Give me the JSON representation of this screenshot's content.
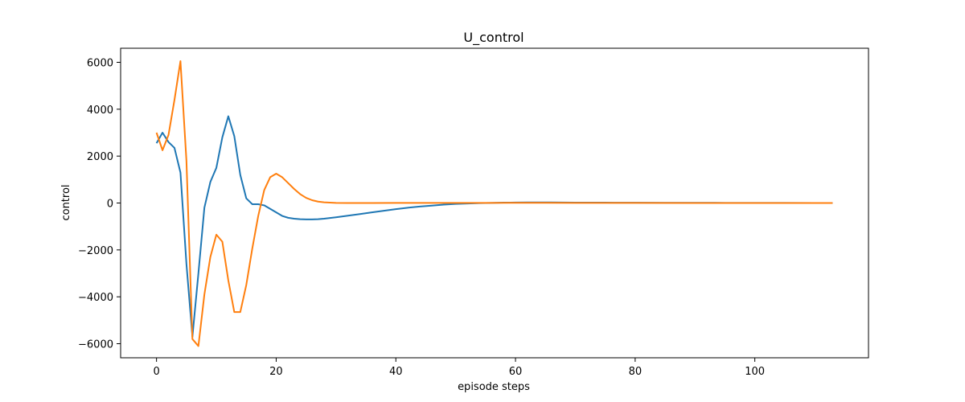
{
  "chart_data": {
    "type": "line",
    "title": "U_control",
    "xlabel": "episode steps",
    "ylabel": "control",
    "xlim": [
      -6,
      119
    ],
    "ylim": [
      -6600,
      6600
    ],
    "x_ticks": [
      0,
      20,
      40,
      60,
      80,
      100
    ],
    "y_ticks": [
      -6000,
      -4000,
      -2000,
      0,
      2000,
      4000,
      6000
    ],
    "x_tick_labels": [
      "0",
      "20",
      "40",
      "60",
      "80",
      "100"
    ],
    "y_tick_labels": [
      "−6000",
      "−4000",
      "−2000",
      "0",
      "2000",
      "4000",
      "6000"
    ],
    "grid": false,
    "legend": "none",
    "series": [
      {
        "color": "#1f77b4",
        "points": [
          [
            0,
            2550
          ],
          [
            1,
            3000
          ],
          [
            2,
            2600
          ],
          [
            3,
            2350
          ],
          [
            4,
            1300
          ],
          [
            5,
            -2600
          ],
          [
            6,
            -5700
          ],
          [
            7,
            -3000
          ],
          [
            8,
            -200
          ],
          [
            9,
            900
          ],
          [
            10,
            1500
          ],
          [
            11,
            2800
          ],
          [
            12,
            3700
          ],
          [
            13,
            2850
          ],
          [
            14,
            1200
          ],
          [
            15,
            200
          ],
          [
            16,
            -50
          ],
          [
            17,
            -50
          ],
          [
            18,
            -100
          ],
          [
            19,
            -250
          ],
          [
            20,
            -400
          ],
          [
            21,
            -550
          ],
          [
            22,
            -630
          ],
          [
            23,
            -670
          ],
          [
            24,
            -690
          ],
          [
            25,
            -700
          ],
          [
            26,
            -700
          ],
          [
            27,
            -690
          ],
          [
            28,
            -670
          ],
          [
            29,
            -640
          ],
          [
            30,
            -610
          ],
          [
            32,
            -540
          ],
          [
            34,
            -470
          ],
          [
            36,
            -400
          ],
          [
            38,
            -330
          ],
          [
            40,
            -260
          ],
          [
            42,
            -200
          ],
          [
            44,
            -150
          ],
          [
            46,
            -110
          ],
          [
            48,
            -70
          ],
          [
            50,
            -40
          ],
          [
            52,
            -20
          ],
          [
            54,
            -5
          ],
          [
            56,
            5
          ],
          [
            58,
            15
          ],
          [
            60,
            20
          ],
          [
            62,
            25
          ],
          [
            64,
            25
          ],
          [
            66,
            25
          ],
          [
            68,
            20
          ],
          [
            70,
            18
          ],
          [
            75,
            15
          ],
          [
            80,
            12
          ],
          [
            85,
            10
          ],
          [
            90,
            8
          ],
          [
            95,
            6
          ],
          [
            100,
            5
          ],
          [
            105,
            3
          ],
          [
            110,
            2
          ],
          [
            113,
            1
          ]
        ]
      },
      {
        "color": "#ff7f0e",
        "points": [
          [
            0,
            3000
          ],
          [
            1,
            2250
          ],
          [
            2,
            2900
          ],
          [
            3,
            4400
          ],
          [
            4,
            6050
          ],
          [
            5,
            1800
          ],
          [
            6,
            -5800
          ],
          [
            7,
            -6100
          ],
          [
            8,
            -3900
          ],
          [
            9,
            -2300
          ],
          [
            10,
            -1350
          ],
          [
            11,
            -1650
          ],
          [
            12,
            -3300
          ],
          [
            13,
            -4650
          ],
          [
            14,
            -4650
          ],
          [
            15,
            -3500
          ],
          [
            16,
            -1950
          ],
          [
            17,
            -550
          ],
          [
            18,
            550
          ],
          [
            19,
            1100
          ],
          [
            20,
            1250
          ],
          [
            21,
            1100
          ],
          [
            22,
            850
          ],
          [
            23,
            600
          ],
          [
            24,
            380
          ],
          [
            25,
            220
          ],
          [
            26,
            120
          ],
          [
            27,
            60
          ],
          [
            28,
            30
          ],
          [
            29,
            15
          ],
          [
            30,
            5
          ],
          [
            32,
            0
          ],
          [
            34,
            0
          ],
          [
            36,
            2
          ],
          [
            40,
            5
          ],
          [
            45,
            5
          ],
          [
            50,
            5
          ],
          [
            55,
            5
          ],
          [
            60,
            8
          ],
          [
            65,
            10
          ],
          [
            70,
            5
          ],
          [
            80,
            3
          ],
          [
            90,
            2
          ],
          [
            100,
            1
          ],
          [
            110,
            0
          ],
          [
            113,
            0
          ]
        ]
      }
    ]
  }
}
